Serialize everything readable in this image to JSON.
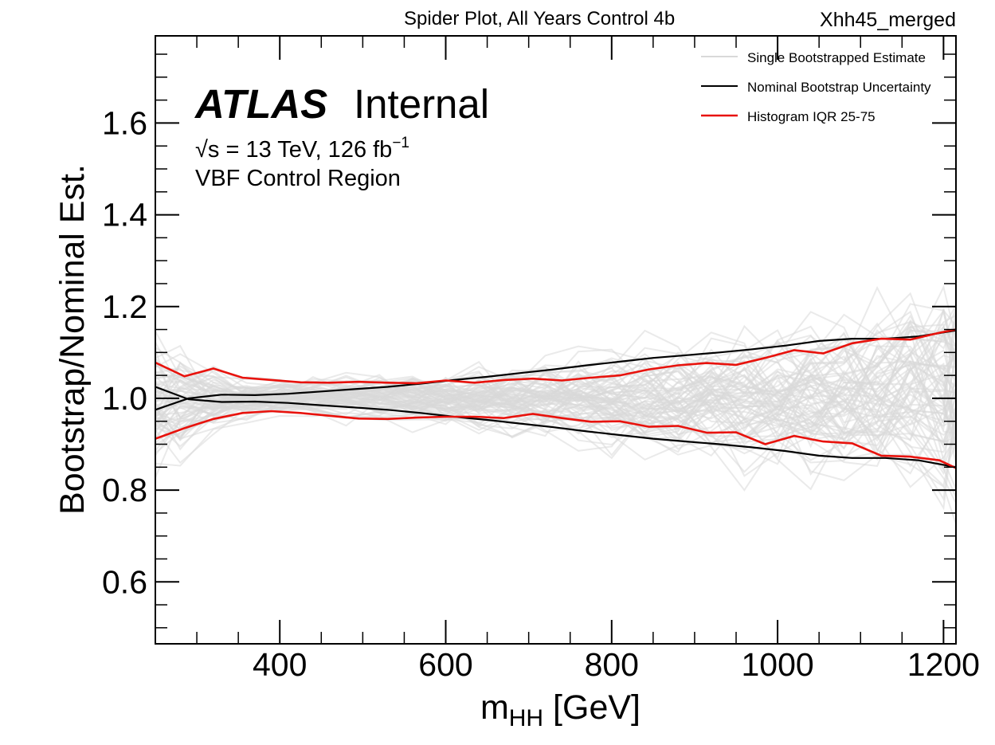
{
  "header": {
    "title": "Spider Plot, All Years Control 4b",
    "tag": "Xhh45_merged"
  },
  "atlas": {
    "brand": "ATLAS",
    "status": "Internal",
    "sqrt_s": "√s",
    "energy_text": " = 13 TeV, 126 fb",
    "lumi_exp": "−1",
    "region": "VBF Control Region"
  },
  "legend": {
    "position": "top-right",
    "entries": [
      {
        "label": "Single Bootstrapped Estimate",
        "color": "#d9d9d9"
      },
      {
        "label": "Nominal Bootstrap Uncertainty",
        "color": "#000000"
      },
      {
        "label": "Histogram IQR 25-75",
        "color": "#e8120c"
      }
    ]
  },
  "chart_data": {
    "type": "line",
    "ylabel": "Bootstrap/Nominal Est.",
    "xlabel_main": "m",
    "xlabel_sub": "HH",
    "xlabel_unit": " [GeV]",
    "xlim": [
      250,
      1215
    ],
    "ylim": [
      0.465,
      1.79
    ],
    "x_ticks": [
      400,
      600,
      800,
      1000,
      1200
    ],
    "y_ticks": [
      0.6,
      0.8,
      1.0,
      1.2,
      1.4,
      1.6
    ],
    "y_tick_labels": [
      "0.6",
      "0.8",
      "1.0",
      "1.2",
      "1.4",
      "1.6"
    ],
    "grid": false,
    "bin_centers": [
      250,
      280,
      320,
      360,
      400,
      440,
      480,
      520,
      560,
      600,
      640,
      680,
      720,
      760,
      800,
      840,
      880,
      920,
      960,
      1000,
      1040,
      1080,
      1120,
      1160,
      1200,
      1215
    ],
    "series": [
      {
        "name": "Nominal Bootstrap Uncertainty",
        "color": "#000000",
        "lines": [
          {
            "x": [
              250,
              290,
              330,
              370,
              410,
              450,
              490,
              530,
              570,
              610,
              650,
              690,
              730,
              770,
              810,
              850,
              890,
              930,
              970,
              1010,
              1050,
              1090,
              1130,
              1170,
              1215
            ],
            "y": [
              0.975,
              1.0,
              1.008,
              1.007,
              1.01,
              1.015,
              1.02,
              1.025,
              1.032,
              1.04,
              1.047,
              1.055,
              1.063,
              1.072,
              1.08,
              1.088,
              1.094,
              1.1,
              1.107,
              1.115,
              1.125,
              1.13,
              1.13,
              1.135,
              1.148
            ]
          },
          {
            "x": [
              250,
              290,
              330,
              370,
              410,
              450,
              490,
              530,
              570,
              610,
              650,
              690,
              730,
              770,
              810,
              850,
              890,
              930,
              970,
              1010,
              1050,
              1090,
              1130,
              1170,
              1215
            ],
            "y": [
              1.025,
              0.998,
              0.992,
              0.993,
              0.99,
              0.985,
              0.98,
              0.975,
              0.968,
              0.96,
              0.953,
              0.945,
              0.937,
              0.928,
              0.92,
              0.912,
              0.906,
              0.9,
              0.893,
              0.885,
              0.875,
              0.87,
              0.87,
              0.865,
              0.85
            ]
          }
        ]
      },
      {
        "name": "Histogram IQR 25-75",
        "color": "#e8120c",
        "lines": [
          {
            "x": [
              250,
              285,
              320,
              355,
              390,
              425,
              460,
              495,
              530,
              565,
              600,
              635,
              670,
              705,
              740,
              775,
              810,
              845,
              880,
              915,
              950,
              985,
              1020,
              1055,
              1090,
              1125,
              1160,
              1195,
              1215
            ],
            "y": [
              1.078,
              1.048,
              1.065,
              1.045,
              1.04,
              1.035,
              1.034,
              1.036,
              1.034,
              1.033,
              1.039,
              1.034,
              1.04,
              1.043,
              1.039,
              1.045,
              1.05,
              1.063,
              1.072,
              1.077,
              1.073,
              1.088,
              1.105,
              1.098,
              1.12,
              1.13,
              1.128,
              1.143,
              1.15
            ]
          },
          {
            "x": [
              250,
              285,
              320,
              355,
              390,
              425,
              460,
              495,
              530,
              565,
              600,
              635,
              670,
              705,
              740,
              775,
              810,
              845,
              880,
              915,
              950,
              985,
              1020,
              1055,
              1090,
              1125,
              1160,
              1195,
              1215
            ],
            "y": [
              0.912,
              0.935,
              0.955,
              0.968,
              0.972,
              0.968,
              0.962,
              0.956,
              0.955,
              0.958,
              0.96,
              0.96,
              0.957,
              0.966,
              0.957,
              0.949,
              0.95,
              0.938,
              0.94,
              0.925,
              0.926,
              0.9,
              0.918,
              0.906,
              0.902,
              0.875,
              0.873,
              0.865,
              0.848
            ]
          }
        ]
      }
    ]
  }
}
